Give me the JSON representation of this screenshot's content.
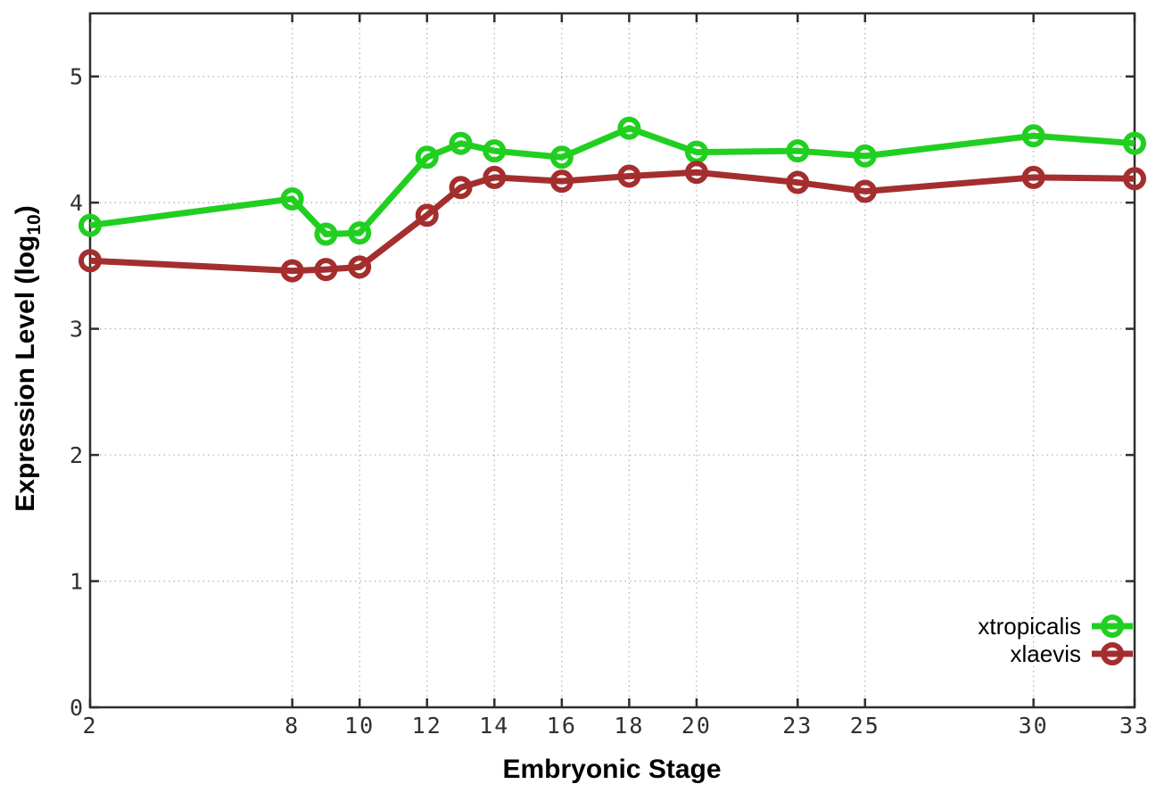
{
  "chart_data": {
    "type": "line",
    "title": "",
    "xlabel": "Embryonic Stage",
    "ylabel": {
      "prefix": "Expression Level (log",
      "sub": "10",
      "suffix": ")"
    },
    "xlim": [
      2,
      33
    ],
    "ylim": [
      0,
      5.5
    ],
    "grid": true,
    "legend_position": "inside-right",
    "x_ticks": [
      "2",
      "8",
      "10",
      "12",
      "14",
      "16",
      "18",
      "20",
      "23",
      "25",
      "30",
      "33"
    ],
    "x_tick_values": [
      2,
      8,
      10,
      12,
      14,
      16,
      18,
      20,
      23,
      25,
      30,
      33
    ],
    "y_ticks": [
      "0",
      "1",
      "2",
      "3",
      "4",
      "5"
    ],
    "y_tick_values": [
      0,
      1,
      2,
      3,
      4,
      5
    ],
    "x": [
      2,
      8,
      9,
      10,
      12,
      13,
      14,
      16,
      18,
      20,
      23,
      25,
      30,
      33
    ],
    "series": [
      {
        "name": "xtropicalis",
        "color": "#21cf21",
        "marker": "open-circle",
        "values": [
          3.82,
          4.03,
          3.75,
          3.76,
          4.36,
          4.47,
          4.41,
          4.36,
          4.59,
          4.4,
          4.41,
          4.37,
          4.53,
          4.47
        ]
      },
      {
        "name": "xlaevis",
        "color": "#a42e2e",
        "marker": "open-circle",
        "values": [
          3.54,
          3.46,
          3.47,
          3.49,
          3.9,
          4.12,
          4.2,
          4.17,
          4.21,
          4.24,
          4.16,
          4.09,
          4.2,
          4.19
        ]
      }
    ],
    "colors": {
      "frame": "#2e2e2e",
      "grid": "#b5b5b5",
      "tick_text": "#303030"
    }
  }
}
